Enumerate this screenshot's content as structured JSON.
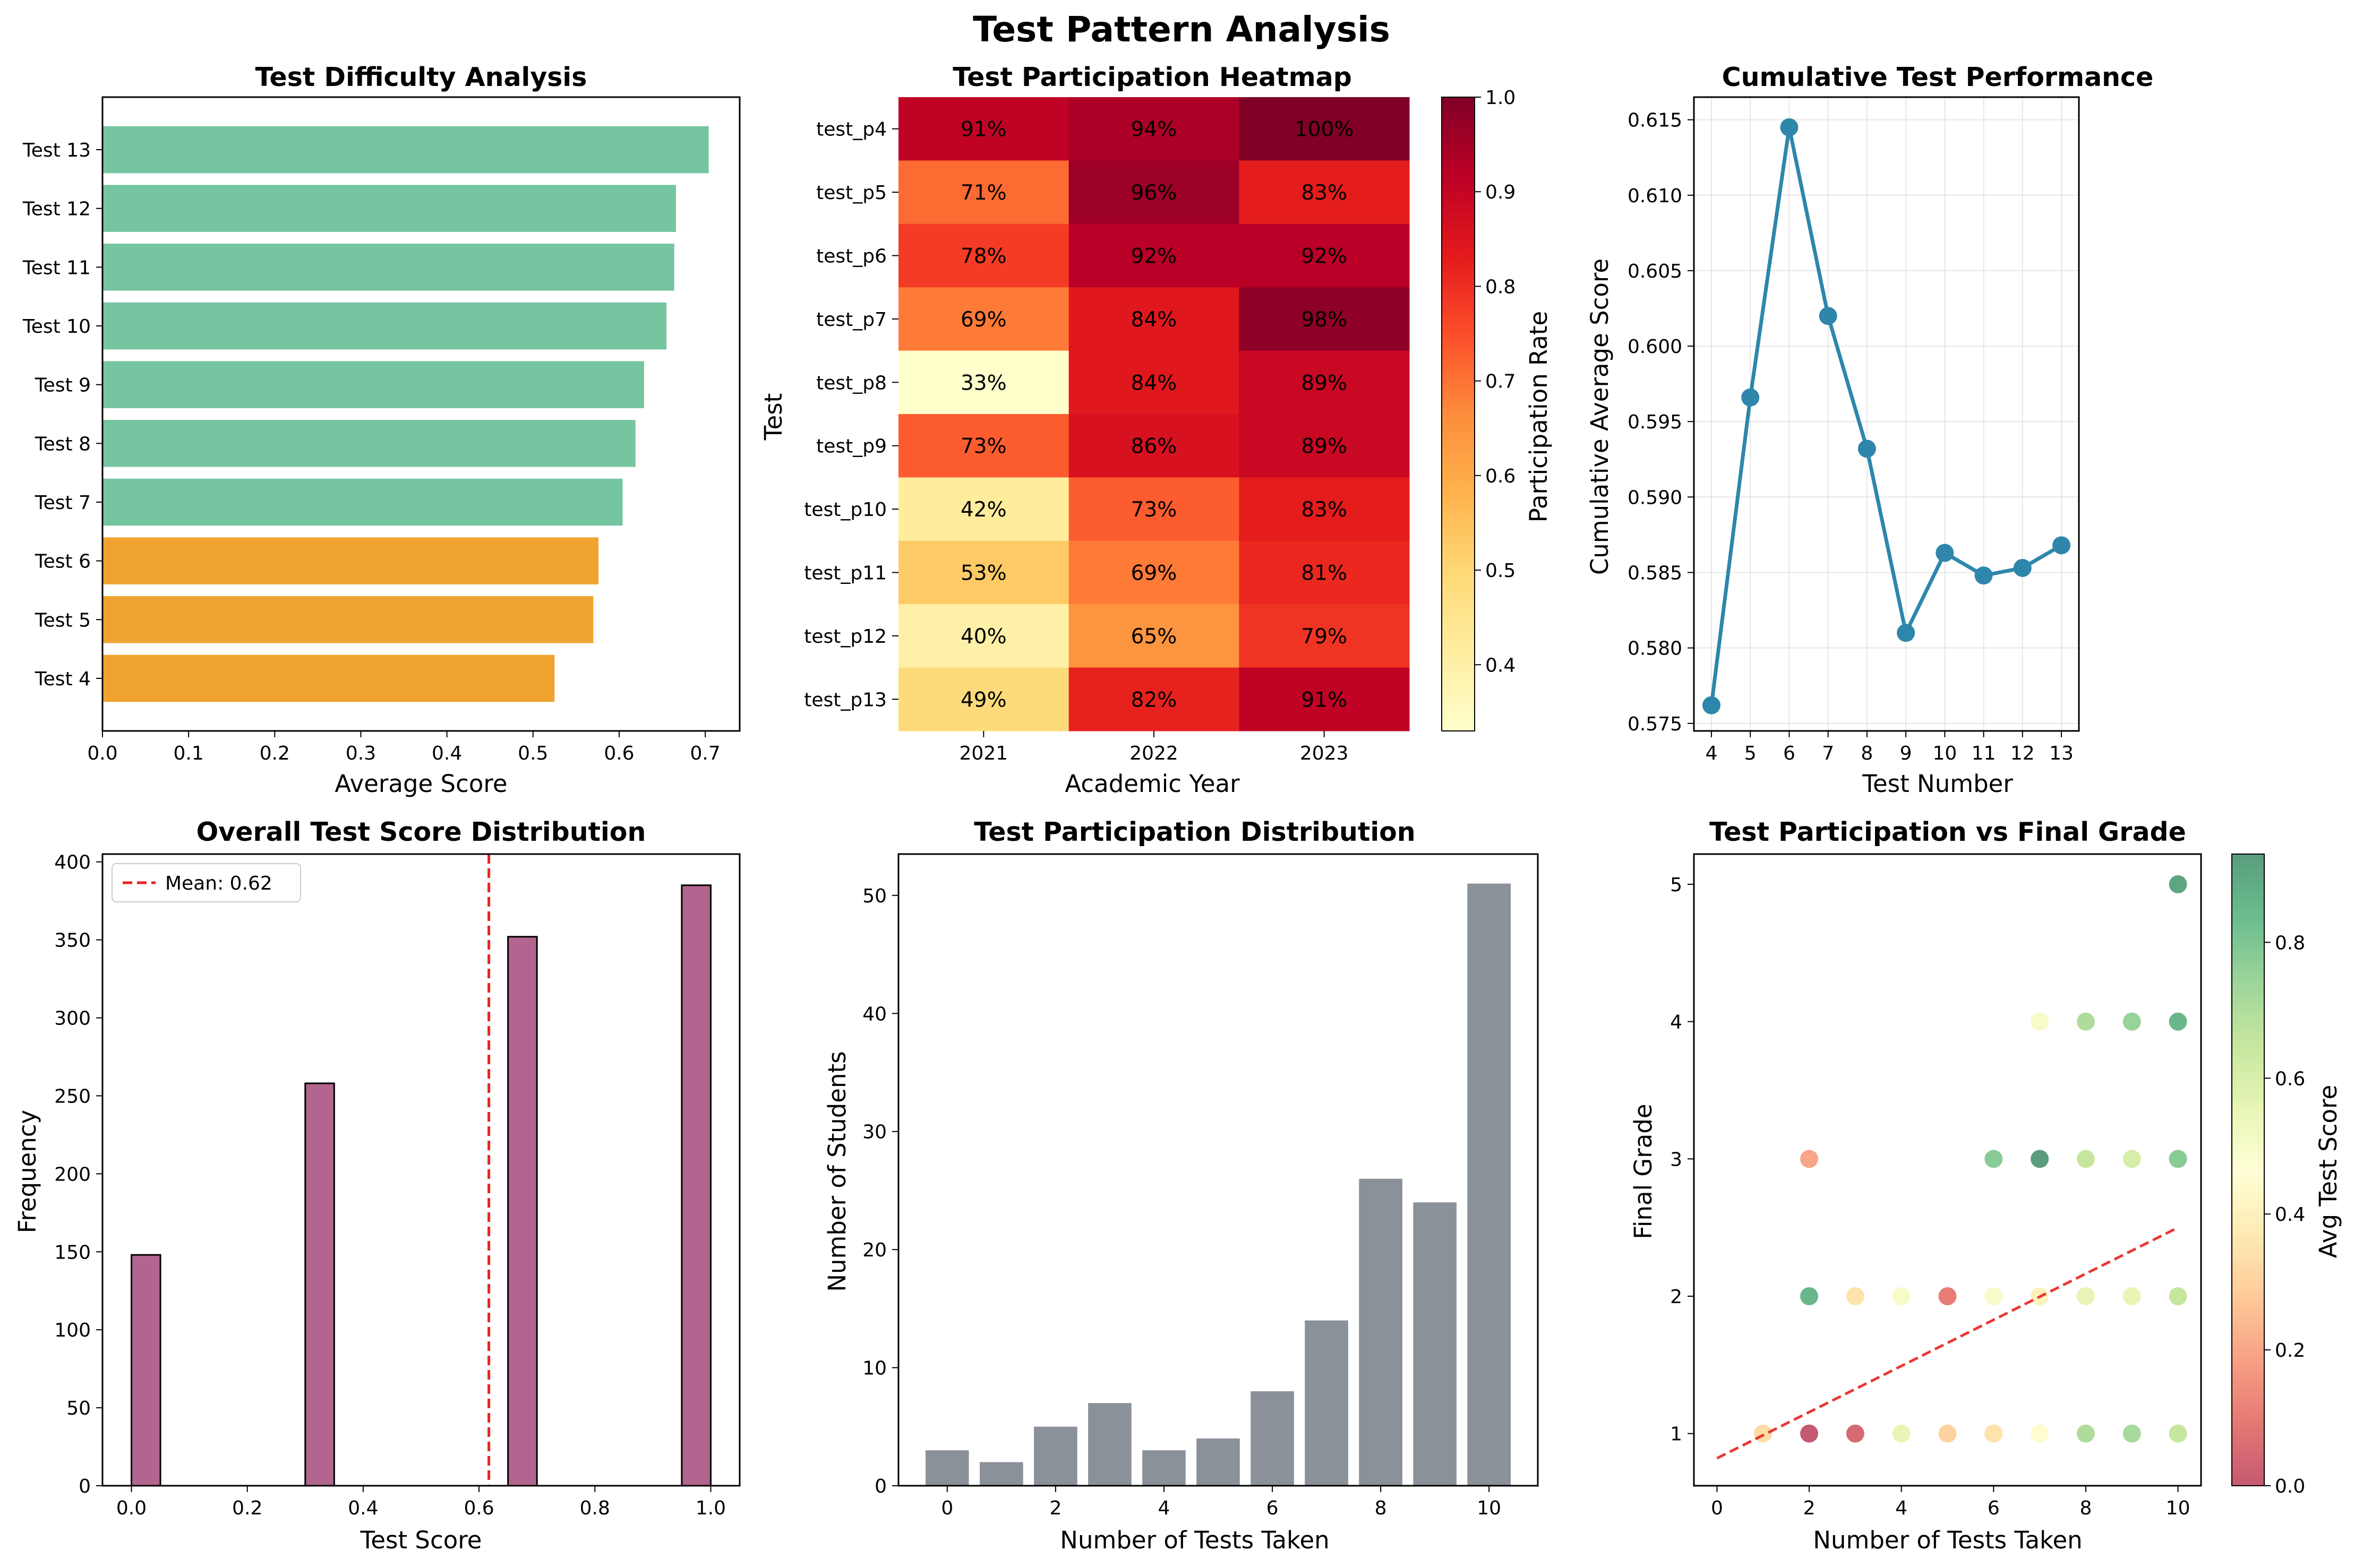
{
  "suptitle": "Test Pattern Analysis",
  "chart_data": [
    {
      "type": "bar",
      "orientation": "horizontal",
      "title": "Test Difficulty Analysis",
      "xlabel": "Average Score",
      "ylabel": "",
      "xlim": [
        0,
        0.74
      ],
      "xticks": [
        "0.0",
        "0.1",
        "0.2",
        "0.3",
        "0.4",
        "0.5",
        "0.6",
        "0.7"
      ],
      "categories": [
        "Test 4",
        "Test 5",
        "Test 6",
        "Test 7",
        "Test 8",
        "Test 9",
        "Test 10",
        "Test 11",
        "Test 12",
        "Test 13"
      ],
      "values": [
        0.525,
        0.57,
        0.576,
        0.604,
        0.619,
        0.629,
        0.655,
        0.664,
        0.666,
        0.704
      ],
      "colors": [
        "#f0a330",
        "#f0a330",
        "#f0a330",
        "#76c5a1",
        "#76c5a1",
        "#76c5a1",
        "#76c5a1",
        "#76c5a1",
        "#76c5a1",
        "#76c5a1"
      ]
    },
    {
      "type": "heatmap",
      "title": "Test Participation Heatmap",
      "xlabel": "Academic Year",
      "ylabel": "Test",
      "columns": [
        "2021",
        "2022",
        "2023"
      ],
      "rows": [
        "test_p4",
        "test_p5",
        "test_p6",
        "test_p7",
        "test_p8",
        "test_p9",
        "test_p10",
        "test_p11",
        "test_p12",
        "test_p13"
      ],
      "values": [
        [
          0.91,
          0.94,
          1.0
        ],
        [
          0.71,
          0.96,
          0.83
        ],
        [
          0.78,
          0.92,
          0.92
        ],
        [
          0.69,
          0.84,
          0.98
        ],
        [
          0.33,
          0.84,
          0.89
        ],
        [
          0.73,
          0.86,
          0.89
        ],
        [
          0.42,
          0.73,
          0.83
        ],
        [
          0.53,
          0.69,
          0.81
        ],
        [
          0.4,
          0.65,
          0.79
        ],
        [
          0.49,
          0.82,
          0.91
        ]
      ],
      "labels": [
        [
          "91%",
          "94%",
          "100%"
        ],
        [
          "71%",
          "96%",
          "83%"
        ],
        [
          "78%",
          "92%",
          "92%"
        ],
        [
          "69%",
          "84%",
          "98%"
        ],
        [
          "33%",
          "84%",
          "89%"
        ],
        [
          "73%",
          "86%",
          "89%"
        ],
        [
          "42%",
          "73%",
          "83%"
        ],
        [
          "53%",
          "69%",
          "81%"
        ],
        [
          "40%",
          "65%",
          "79%"
        ],
        [
          "49%",
          "82%",
          "91%"
        ]
      ],
      "colormap": "YlOrRd",
      "colorbar_label": "Participation Rate",
      "colorbar_range": [
        0.33,
        1.0
      ],
      "colorbar_ticks": [
        "0.4",
        "0.5",
        "0.6",
        "0.7",
        "0.8",
        "0.9",
        "1.0"
      ]
    },
    {
      "type": "line",
      "title": "Cumulative Test Performance",
      "xlabel": "Test Number",
      "ylabel": "Cumulative Average Score",
      "x": [
        4,
        5,
        6,
        7,
        8,
        9,
        10,
        11,
        12,
        13
      ],
      "xticks": [
        "4",
        "5",
        "6",
        "7",
        "8",
        "9",
        "10",
        "11",
        "12",
        "13"
      ],
      "y": [
        0.5762,
        0.5966,
        0.6145,
        0.602,
        0.5932,
        0.581,
        0.5863,
        0.5848,
        0.5853,
        0.5868
      ],
      "ylim": [
        0.5745,
        0.6165
      ],
      "yticks": [
        "0.575",
        "0.580",
        "0.585",
        "0.590",
        "0.595",
        "0.600",
        "0.605",
        "0.610",
        "0.615"
      ],
      "grid": true,
      "color": "#2e86ab"
    },
    {
      "type": "bar",
      "subtype": "histogram",
      "title": "Overall Test Score Distribution",
      "xlabel": "Test Score",
      "ylabel": "Frequency",
      "xlim": [
        -0.05,
        1.05
      ],
      "ylim": [
        0,
        405
      ],
      "xticks": [
        "0.0",
        "0.2",
        "0.4",
        "0.6",
        "0.8",
        "1.0"
      ],
      "yticks": [
        "0",
        "50",
        "100",
        "150",
        "200",
        "250",
        "300",
        "350",
        "400"
      ],
      "bins": [
        {
          "x0": 0.0,
          "x1": 0.05,
          "value": 148
        },
        {
          "x0": 0.3,
          "x1": 0.35,
          "value": 258
        },
        {
          "x0": 0.65,
          "x1": 0.7,
          "value": 352
        },
        {
          "x0": 0.95,
          "x1": 1.0,
          "value": 385
        }
      ],
      "mean": 0.617,
      "legend_label": "Mean: 0.62",
      "legend": "top-left",
      "color": "#a44a7a"
    },
    {
      "type": "bar",
      "title": "Test Participation Distribution",
      "xlabel": "Number of Tests Taken",
      "ylabel": "Number of Students",
      "categories": [
        0,
        1,
        2,
        3,
        4,
        5,
        6,
        7,
        8,
        9,
        10
      ],
      "values": [
        3,
        2,
        5,
        7,
        3,
        4,
        8,
        14,
        26,
        24,
        51
      ],
      "xlim": [
        -0.9,
        10.9
      ],
      "ylim": [
        0,
        53.5
      ],
      "xticks": [
        "0",
        "2",
        "4",
        "6",
        "8",
        "10"
      ],
      "yticks": [
        "0",
        "10",
        "20",
        "30",
        "40",
        "50"
      ],
      "color": "#8a9199"
    },
    {
      "type": "scatter",
      "title": "Test Participation vs Final Grade",
      "xlabel": "Number of Tests Taken",
      "ylabel": "Final Grade",
      "xlim": [
        -0.5,
        10.5
      ],
      "ylim": [
        0.62,
        5.22
      ],
      "xticks": [
        "0",
        "2",
        "4",
        "6",
        "8",
        "10"
      ],
      "yticks": [
        "1",
        "2",
        "3",
        "4",
        "5"
      ],
      "points": [
        {
          "x": 1,
          "y": 1,
          "c": 0.33
        },
        {
          "x": 2,
          "y": 1,
          "c": 0.0
        },
        {
          "x": 3,
          "y": 1,
          "c": 0.05
        },
        {
          "x": 4,
          "y": 1,
          "c": 0.55
        },
        {
          "x": 5,
          "y": 1,
          "c": 0.3
        },
        {
          "x": 6,
          "y": 1,
          "c": 0.35
        },
        {
          "x": 7,
          "y": 1,
          "c": 0.45
        },
        {
          "x": 8,
          "y": 1,
          "c": 0.7
        },
        {
          "x": 9,
          "y": 1,
          "c": 0.72
        },
        {
          "x": 10,
          "y": 1,
          "c": 0.65
        },
        {
          "x": 2,
          "y": 2,
          "c": 0.85
        },
        {
          "x": 3,
          "y": 2,
          "c": 0.35
        },
        {
          "x": 4,
          "y": 2,
          "c": 0.5
        },
        {
          "x": 5,
          "y": 2,
          "c": 0.1
        },
        {
          "x": 6,
          "y": 2,
          "c": 0.5
        },
        {
          "x": 7,
          "y": 2,
          "c": 0.4
        },
        {
          "x": 8,
          "y": 2,
          "c": 0.55
        },
        {
          "x": 9,
          "y": 2,
          "c": 0.55
        },
        {
          "x": 10,
          "y": 2,
          "c": 0.65
        },
        {
          "x": 2,
          "y": 3,
          "c": 0.2
        },
        {
          "x": 6,
          "y": 3,
          "c": 0.78
        },
        {
          "x": 7,
          "y": 3,
          "c": 0.95
        },
        {
          "x": 8,
          "y": 3,
          "c": 0.65
        },
        {
          "x": 9,
          "y": 3,
          "c": 0.6
        },
        {
          "x": 10,
          "y": 3,
          "c": 0.78
        },
        {
          "x": 7,
          "y": 4,
          "c": 0.5
        },
        {
          "x": 8,
          "y": 4,
          "c": 0.7
        },
        {
          "x": 9,
          "y": 4,
          "c": 0.75
        },
        {
          "x": 10,
          "y": 4,
          "c": 0.85
        },
        {
          "x": 10,
          "y": 5,
          "c": 0.9
        }
      ],
      "trend": {
        "x": [
          0,
          10
        ],
        "y": [
          0.82,
          2.5
        ]
      },
      "colormap": "RdYlGn",
      "colorbar_label": "Avg Test Score",
      "colorbar_range": [
        0,
        0.93
      ],
      "colorbar_ticks": [
        "0.0",
        "0.2",
        "0.4",
        "0.6",
        "0.8"
      ]
    }
  ]
}
